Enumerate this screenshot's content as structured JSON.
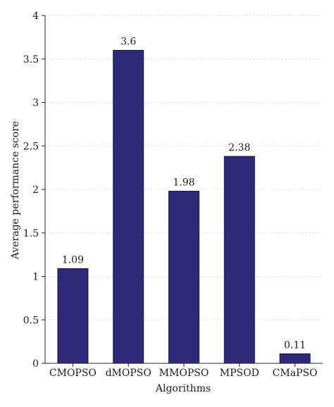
{
  "chart_data": {
    "type": "bar",
    "categories": [
      "CMOPSO",
      "dMOPSO",
      "MMOPSO",
      "MPSOD",
      "CMaPSO"
    ],
    "values": [
      1.09,
      3.6,
      1.98,
      2.38,
      0.11
    ],
    "value_labels": [
      "1.09",
      "3.6",
      "1.98",
      "2.38",
      "0.11"
    ],
    "xlabel": "Algorithms",
    "ylabel": "Average performance score",
    "ylim": [
      0,
      4
    ],
    "yticks": [
      0,
      0.5,
      1,
      1.5,
      2,
      2.5,
      3,
      3.5,
      4
    ],
    "ytick_labels": [
      "0",
      "0.5",
      "1",
      "1.5",
      "2",
      "2.5",
      "3",
      "3.5",
      "4"
    ],
    "grid": "horizontal dashed",
    "bar_color": "#2e2a78"
  }
}
